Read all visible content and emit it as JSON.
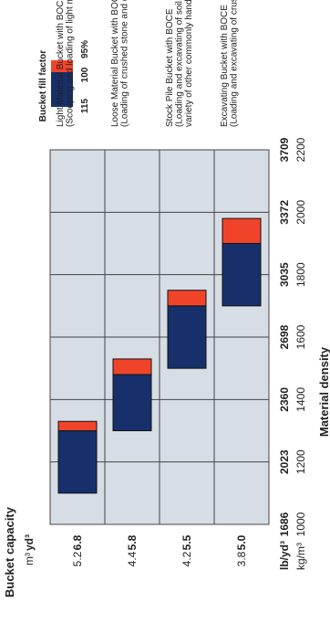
{
  "chart_data": {
    "type": "bar",
    "orientation": "rotated-90-counterclockwise",
    "xlabel": "Material density",
    "ylabel": "Bucket capacity",
    "density_units": {
      "imperial": "lb/yd³",
      "metric": "kg/m³"
    },
    "capacity_units": {
      "metric": "m³",
      "imperial": "yd³"
    },
    "density_ticks_imperial": [
      "1686",
      "2023",
      "2360",
      "2698",
      "3035",
      "3372",
      "3709"
    ],
    "density_ticks_metric": [
      "1000",
      "1200",
      "1400",
      "1600",
      "1800",
      "2000",
      "2200"
    ],
    "xlim": [
      1000,
      2200
    ],
    "categories": [
      {
        "m3": "5.2",
        "yd3": "6.8"
      },
      {
        "m3": "4.4",
        "yd3": "5.8"
      },
      {
        "m3": "4.2",
        "yd3": "5.5"
      },
      {
        "m3": "3.8",
        "yd3": "5.0"
      }
    ],
    "bars": [
      {
        "low": 1100,
        "fill100": 1300,
        "high": 1330,
        "legend_index": 0
      },
      {
        "low": 1300,
        "fill100": 1480,
        "high": 1530,
        "legend_index": 1
      },
      {
        "low": 1500,
        "fill100": 1700,
        "high": 1750,
        "legend_index": 2
      },
      {
        "low": 1700,
        "fill100": 1900,
        "high": 1980,
        "legend_index": 3
      }
    ],
    "bucket_fill": {
      "title": "Bucket fill factor",
      "labels": [
        "115",
        "100",
        "95%"
      ],
      "colors": {
        "navy": "#17306b",
        "orange": "#f0442a"
      }
    },
    "legend": [
      {
        "lines": [
          "Light Material Bucket with BOCE",
          "(Scooping and loading of light material)"
        ]
      },
      {
        "lines": [
          "Loose Material Bucket with BOCE",
          "(Loading of crushed stone and dry sand)"
        ]
      },
      {
        "lines": [
          "Stock Pile Bucket with BOCE",
          "(Loading and excavating of soil, sand and",
          "variety of other commonly handled material)"
        ]
      },
      {
        "lines": [
          "Excavating Bucket with BOCE",
          "(Loading and excavating of crushed or blasted rock)"
        ]
      }
    ],
    "grid": true,
    "grid_color": "#d6dde4"
  }
}
